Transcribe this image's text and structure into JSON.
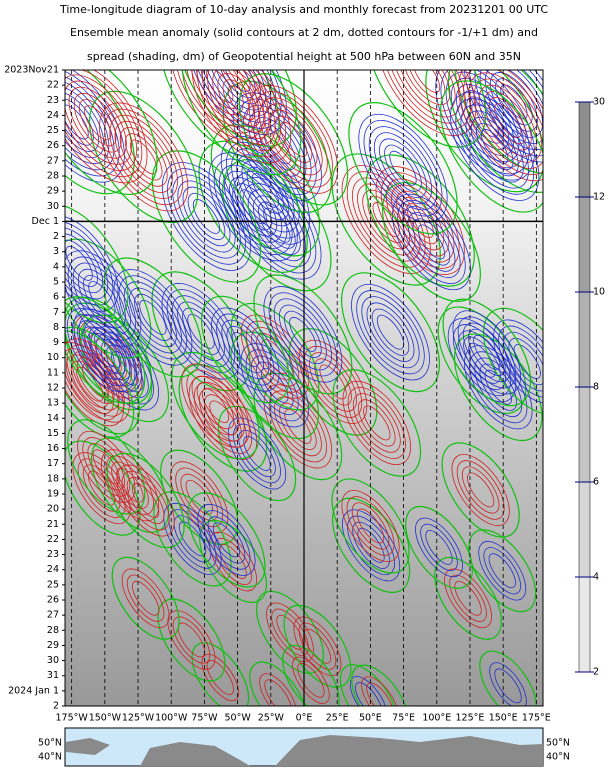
{
  "chart_data": {
    "type": "hovmoller",
    "title": [
      "Time-longitude diagram of 10-day analysis and monthly forecast from 20231201 00 UTC",
      "Ensemble mean anomaly (solid contours at 2 dm, dotted contours for -1/+1 dm) and",
      "spread (shading, dm) of Geopotential height at 500 hPa between 60N and 35N"
    ],
    "categories": [
      "2023Nov21",
      "22",
      "23",
      "24",
      "25",
      "26",
      "27",
      "28",
      "29",
      "30",
      "Dec 1",
      "2",
      "3",
      "4",
      "5",
      "6",
      "7",
      "8",
      "9",
      "10",
      "11",
      "12",
      "13",
      "14",
      "15",
      "16",
      "17",
      "18",
      "19",
      "20",
      "21",
      "22",
      "23",
      "24",
      "25",
      "26",
      "27",
      "28",
      "29",
      "30",
      "31",
      "2024 Jan 1",
      "2"
    ],
    "category_colors": [
      "#000",
      "#000",
      "#000",
      "#000",
      "#000",
      "#e00000",
      "#000",
      "#000",
      "#000",
      "#000",
      "#000",
      "#000",
      "#e00000",
      "#000",
      "#000",
      "#000",
      "#000",
      "#000",
      "#000",
      "#e00000",
      "#000",
      "#000",
      "#000",
      "#000",
      "#000",
      "#000",
      "#e00000",
      "#000",
      "#000",
      "#000",
      "#000",
      "#000",
      "#000",
      "#e00000",
      "#000",
      "#000",
      "#000",
      "#000",
      "#000",
      "#000",
      "#e00000",
      "#000",
      "#000"
    ],
    "xlim": [
      -180,
      180
    ],
    "xticks": [
      {
        "value": -175,
        "label": "175°W"
      },
      {
        "value": -150,
        "label": "150°W"
      },
      {
        "value": -125,
        "label": "125°W"
      },
      {
        "value": -100,
        "label": "100°W"
      },
      {
        "value": -75,
        "label": "75°W"
      },
      {
        "value": -50,
        "label": "50°W"
      },
      {
        "value": -25,
        "label": "25°W"
      },
      {
        "value": 0,
        "label": "0°E"
      },
      {
        "value": 25,
        "label": "25°E"
      },
      {
        "value": 50,
        "label": "50°E"
      },
      {
        "value": 75,
        "label": "75°E"
      },
      {
        "value": 100,
        "label": "100°E"
      },
      {
        "value": 125,
        "label": "125°E"
      },
      {
        "value": 150,
        "label": "150°E"
      },
      {
        "value": 175,
        "label": "175°E"
      }
    ],
    "colorbar_levels": [
      2,
      4,
      6,
      8,
      10,
      12,
      30
    ],
    "colorbar_colors": [
      "#e8e8e8",
      "#d6d6d6",
      "#c4c4c4",
      "#b2b2b2",
      "#a0a0a0",
      "#8e8e8e"
    ],
    "map_labels": [
      "50°N",
      "40°N"
    ]
  }
}
